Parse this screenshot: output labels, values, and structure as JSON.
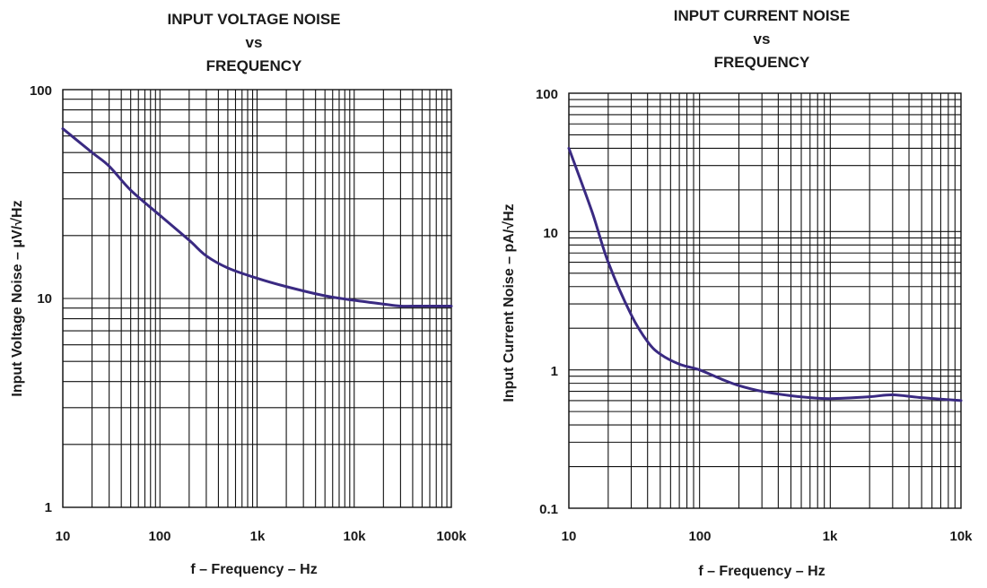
{
  "colors": {
    "curve": "#3a2a82",
    "grid": "#111111",
    "text": "#1a1a1a"
  },
  "chart_data": [
    {
      "type": "line",
      "title_lines": [
        "INPUT VOLTAGE NOISE",
        "vs",
        "FREQUENCY"
      ],
      "xlabel": "f – Frequency – Hz",
      "ylabel": "Input Voltage Noise – μV/√Hz",
      "xscale": "log",
      "yscale": "log",
      "xlim": [
        10,
        100000
      ],
      "ylim": [
        1,
        100
      ],
      "x_ticks": [
        10,
        100,
        1000,
        10000,
        100000
      ],
      "x_tick_labels": [
        "10",
        "100",
        "1k",
        "10k",
        "100k"
      ],
      "y_ticks": [
        1,
        10,
        100
      ],
      "y_tick_labels": [
        "1",
        "10",
        "100"
      ],
      "grid": true,
      "series": [
        {
          "name": "Input Voltage Noise",
          "x": [
            10,
            20,
            30,
            50,
            100,
            200,
            300,
            500,
            1000,
            2000,
            5000,
            10000,
            20000,
            30000,
            50000,
            100000
          ],
          "y": [
            65,
            50,
            43,
            33,
            25,
            19,
            16,
            14,
            12.5,
            11.4,
            10.3,
            9.8,
            9.4,
            9.2,
            9.2,
            9.2
          ]
        }
      ]
    },
    {
      "type": "line",
      "title_lines": [
        "INPUT CURRENT NOISE",
        "vs",
        "FREQUENCY"
      ],
      "xlabel": "f – Frequency – Hz",
      "ylabel": "Input Current Noise – pA/√Hz",
      "xscale": "log",
      "yscale": "log",
      "xlim": [
        10,
        10000
      ],
      "ylim": [
        0.1,
        100
      ],
      "x_ticks": [
        10,
        100,
        1000,
        10000
      ],
      "x_tick_labels": [
        "10",
        "100",
        "1k",
        "10k"
      ],
      "y_ticks": [
        0.1,
        1,
        10,
        100
      ],
      "y_tick_labels": [
        "0.1",
        "1",
        "10",
        "100"
      ],
      "grid": true,
      "series": [
        {
          "name": "Input Current Noise",
          "x": [
            10,
            15,
            20,
            30,
            40,
            50,
            70,
            100,
            150,
            200,
            300,
            500,
            700,
            1000,
            2000,
            3000,
            5000,
            10000
          ],
          "y": [
            40,
            14,
            6,
            2.5,
            1.6,
            1.3,
            1.1,
            1.0,
            0.85,
            0.77,
            0.7,
            0.65,
            0.63,
            0.62,
            0.64,
            0.66,
            0.63,
            0.6
          ]
        }
      ]
    }
  ]
}
